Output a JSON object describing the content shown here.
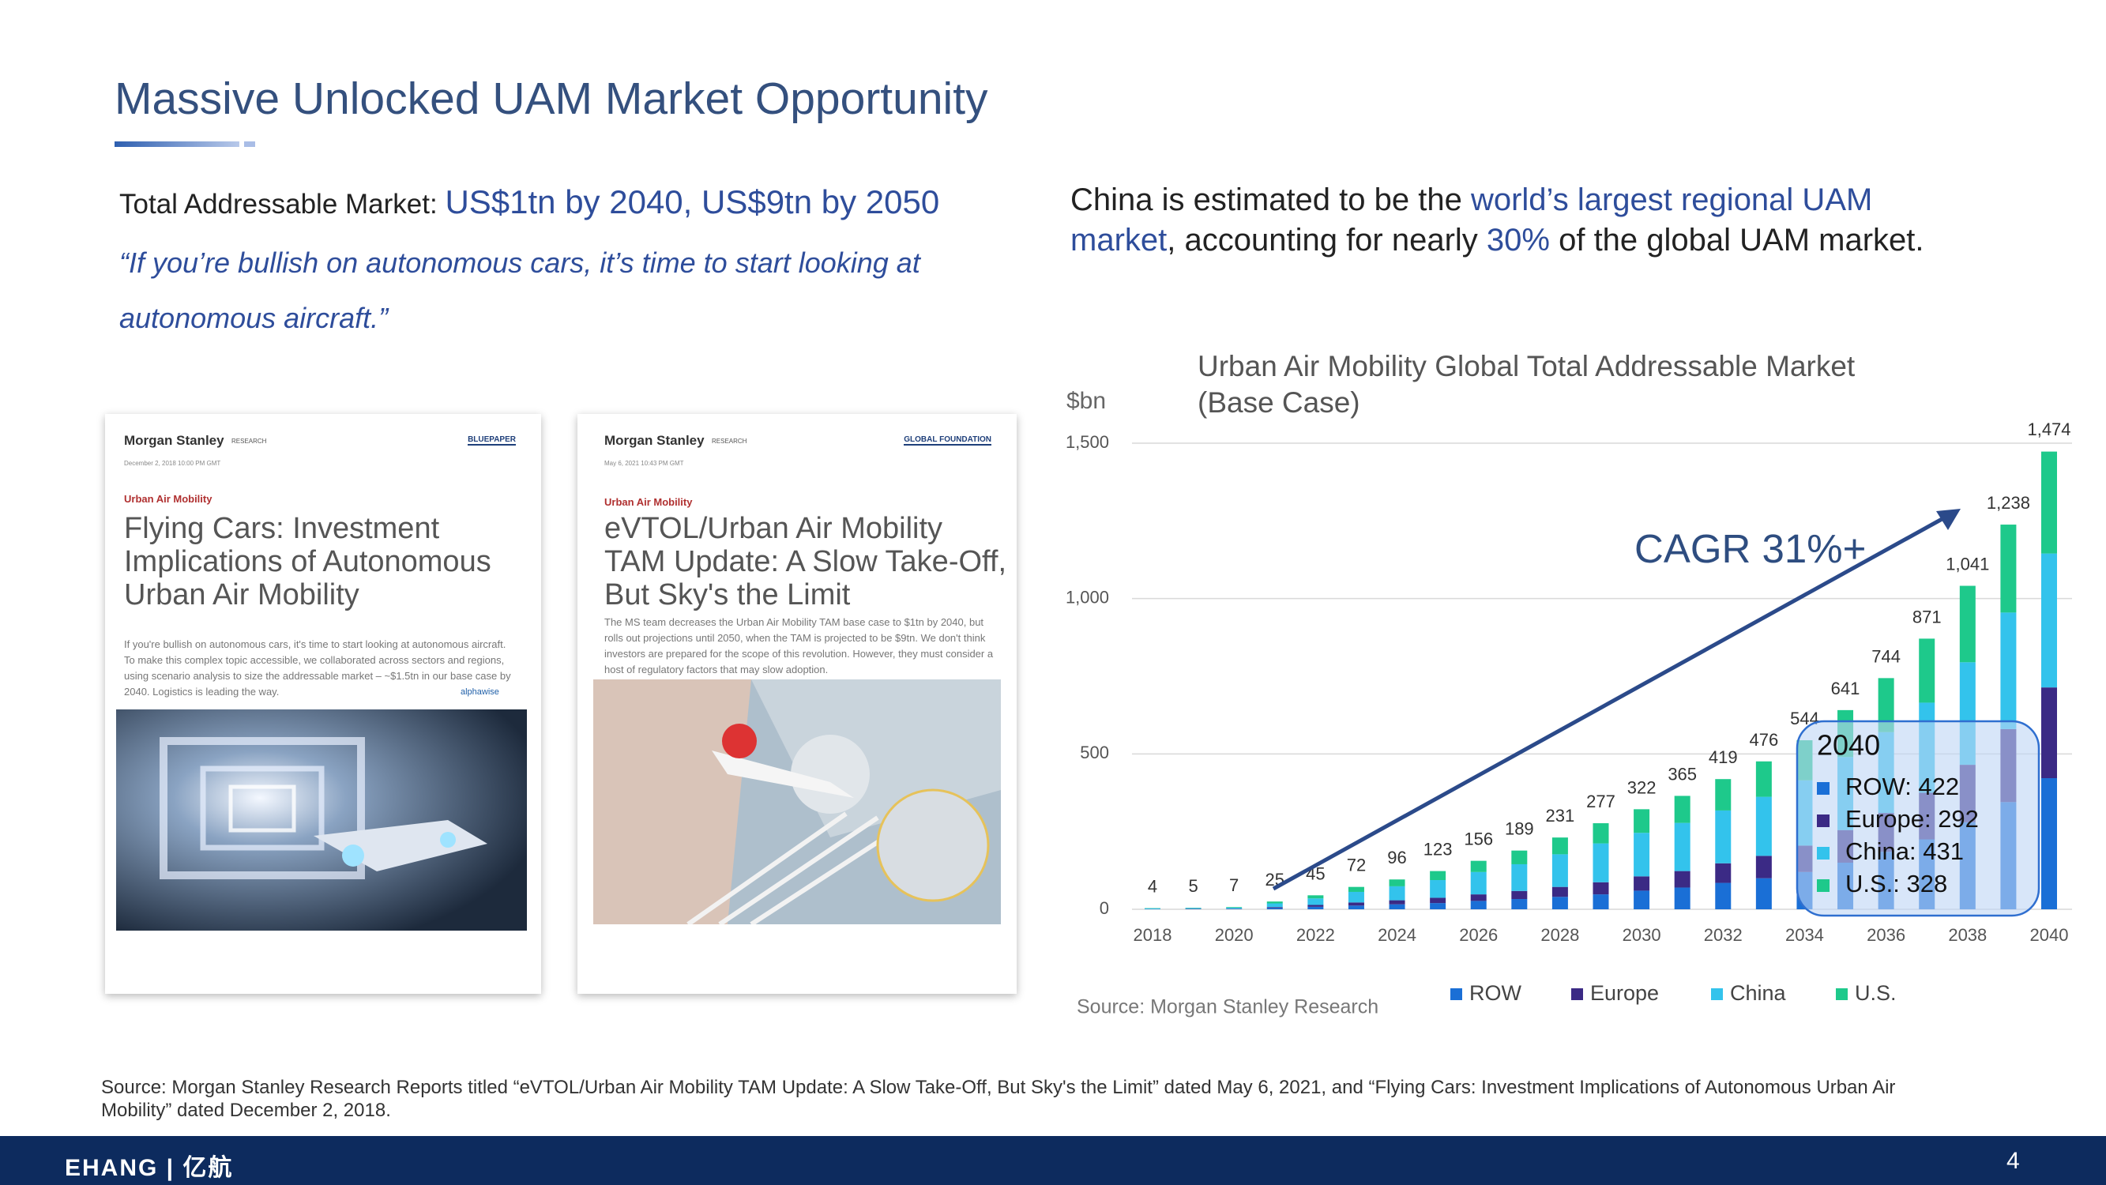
{
  "slide": {
    "title": "Massive Unlocked UAM Market Opportunity",
    "tam_label": "Total Addressable Market: ",
    "tam_value": "US$1tn by 2040, US$9tn by 2050",
    "quote_line1": "“If you’re bullish on autonomous cars, it’s time to start looking at",
    "quote_line2": "autonomous aircraft.”",
    "china_parts": [
      "China is estimated to be the ",
      "world’s largest regional UAM",
      "market",
      ", accounting for nearly ",
      "30%",
      " of the global UAM market."
    ],
    "footer_source": "Source: Morgan Stanley Research Reports titled “eVTOL/Urban Air Mobility TAM Update: A Slow Take-Off, But Sky's the Limit” dated May 6, 2021, and “Flying Cars: Investment Implications of Autonomous Urban Air Mobility” dated December 2, 2018.",
    "logo": "EHANG | 亿航",
    "page_number": "4"
  },
  "reports": [
    {
      "brand": "Morgan Stanley",
      "division": "RESEARCH",
      "tag": "BLUEPAPER",
      "date": "December 2, 2018 10:00 PM GMT",
      "section": "Urban Air Mobility",
      "title": "Flying Cars: Investment Implications of Autonomous Urban Air Mobility",
      "abstract": "If you're bullish on autonomous cars, it's time to start looking at autonomous aircraft. To make this complex topic accessible, we collaborated across sectors and regions, using scenario analysis to size the addressable market – ~$1.5tn in our base case by 2040. Logistics is leading the way.",
      "badge": "alphawise"
    },
    {
      "brand": "Morgan Stanley",
      "division": "RESEARCH",
      "tag": "GLOBAL FOUNDATION",
      "date": "May 6, 2021 10:43 PM GMT",
      "section": "Urban Air Mobility",
      "title": "eVTOL/Urban Air Mobility TAM Update: A Slow Take-Off, But Sky's the Limit",
      "abstract": "The MS team decreases the Urban Air Mobility TAM base case to $1tn by 2040, but rolls out projections until 2050, when the TAM is projected to be $9tn. We don't think investors are prepared for the scope of this revolution. However, they must consider a host of regulatory factors that may slow adoption."
    }
  ],
  "chart_data": {
    "type": "stacked_bar",
    "title": "Urban Air Mobility Global Total Addressable Market (Base Case)",
    "y_label": "$bn",
    "annotation": "CAGR 31%+",
    "source": "Source: Morgan Stanley Research",
    "categories": [
      "2018",
      null,
      "2020",
      null,
      "2022",
      null,
      "2024",
      null,
      "2026",
      null,
      "2028",
      null,
      "2030",
      null,
      "2032",
      null,
      "2034",
      null,
      "2036",
      null,
      "2038",
      null,
      "2040"
    ],
    "series": [
      {
        "name": "ROW",
        "color": "#1a6fd6",
        "values": [
          1,
          1,
          1,
          4,
          8,
          12,
          16,
          20,
          27,
          33,
          40,
          48,
          60,
          70,
          85,
          100,
          120,
          150,
          185,
          225,
          280,
          345,
          422
        ]
      },
      {
        "name": "Europe",
        "color": "#3b2a85",
        "values": [
          0,
          1,
          1,
          3,
          6,
          10,
          13,
          17,
          21,
          26,
          32,
          39,
          46,
          53,
          63,
          72,
          85,
          105,
          125,
          150,
          185,
          235,
          292
        ]
      },
      {
        "name": "China",
        "color": "#33c3ec",
        "values": [
          2,
          2,
          3,
          12,
          21,
          34,
          45,
          57,
          72,
          86,
          105,
          125,
          140,
          155,
          170,
          190,
          210,
          235,
          260,
          290,
          330,
          375,
          431
        ]
      },
      {
        "name": "U.S.",
        "color": "#1ec98b",
        "values": [
          1,
          1,
          2,
          6,
          10,
          16,
          22,
          29,
          36,
          44,
          54,
          65,
          76,
          87,
          101,
          114,
          129,
          151,
          174,
          206,
          246,
          283,
          328
        ]
      }
    ],
    "totals": [
      4,
      5,
      7,
      25,
      45,
      72,
      96,
      123,
      156,
      189,
      231,
      277,
      322,
      365,
      419,
      476,
      544,
      641,
      744,
      871,
      1041,
      1238,
      1474
    ],
    "total_labels": [
      "4",
      "5",
      "7",
      "25",
      "45",
      "72",
      "96",
      "123",
      "156",
      "189",
      "231",
      "277",
      "322",
      "365",
      "419",
      "476",
      "544",
      "641",
      "744",
      "871",
      "1,041",
      "1,238",
      "1,474"
    ],
    "tooltip": {
      "title": "2040",
      "items": [
        "ROW: 422",
        "Europe: 292",
        "China: 431",
        "U.S.: 328"
      ]
    },
    "ylim": [
      0,
      1500
    ],
    "yticks": [
      0,
      500,
      {
        "value": 1000,
        "label": "1,000"
      },
      {
        "value": 1500,
        "label": "1,500"
      }
    ],
    "grid": true
  }
}
